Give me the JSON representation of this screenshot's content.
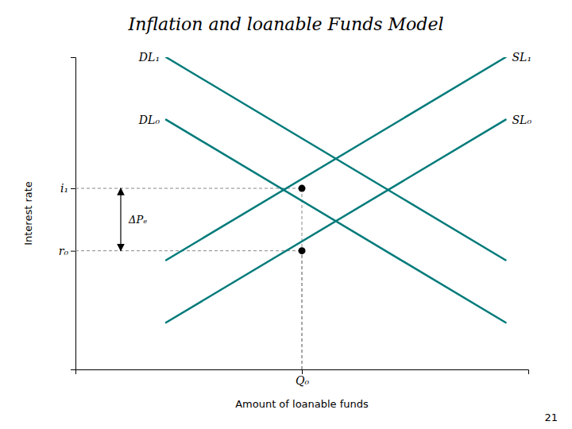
{
  "chart_data": {
    "type": "line",
    "title": "Inflation and loanable Funds Model",
    "x_label": "Amount of loanable funds",
    "y_label": "Interest rate",
    "xlim": [
      0,
      10
    ],
    "ylim": [
      0,
      10
    ],
    "xticks": [
      {
        "value": 5.0,
        "label": "Q₀"
      }
    ],
    "yticks": [
      {
        "value": 3.8,
        "label": "r₀"
      },
      {
        "value": 5.8,
        "label": "i₁"
      }
    ],
    "series": [
      {
        "name": "DL₀",
        "color": "#007A7A",
        "x": [
          2.0,
          9.5
        ],
        "values": [
          8.0,
          1.5
        ]
      },
      {
        "name": "DL₁",
        "color": "#007A7A",
        "x": [
          2.0,
          9.5
        ],
        "values": [
          10.0,
          3.5
        ]
      },
      {
        "name": "SL₀",
        "color": "#007A7A",
        "x": [
          2.0,
          9.5
        ],
        "values": [
          1.5,
          8.0
        ]
      },
      {
        "name": "SL₁",
        "color": "#007A7A",
        "x": [
          2.0,
          9.5
        ],
        "values": [
          3.5,
          10.0
        ]
      }
    ],
    "points": {
      "color": "#000000",
      "x": [
        5.0,
        5.0
      ],
      "values": [
        3.8,
        5.8
      ]
    },
    "annotations": [
      {
        "text": "ΔPₑ",
        "from": 3.8,
        "to": 5.8
      }
    ],
    "page_number": "21"
  }
}
